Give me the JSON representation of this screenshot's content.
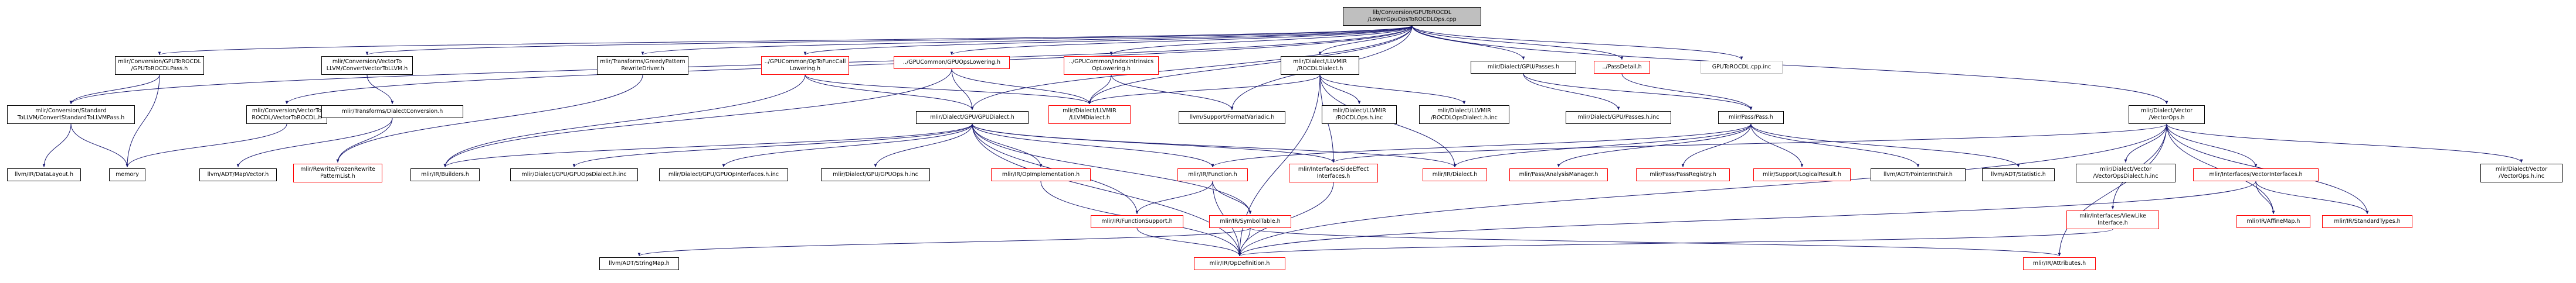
{
  "colors": {
    "edge": "#191970",
    "root_fill": "#bfbfbf",
    "missing_border": "#ff0000",
    "external_border": "#bfbfbf"
  },
  "nodes": [
    {
      "id": "root",
      "lines": [
        "lib/Conversion/GPUToROCDL",
        "/LowerGpuOpsToROCDLOps.cpp"
      ],
      "kind": "root"
    },
    {
      "id": "gpu_rocdl_h",
      "lines": [
        "mlir/Conversion/GPUToROCDL",
        "/GPUToROCDLPass.h"
      ],
      "kind": "normal"
    },
    {
      "id": "std_to_llvm_pass",
      "lines": [
        "mlir/Conversion/Standard",
        "ToLLVM/ConvertStandardToLLVMPass.h"
      ],
      "kind": "normal"
    },
    {
      "id": "vec_to_llvm",
      "lines": [
        "mlir/Conversion/VectorTo",
        "LLVM/ConvertVectorToLLVM.h"
      ],
      "kind": "normal"
    },
    {
      "id": "vec_to_rocdl",
      "lines": [
        "mlir/Conversion/VectorTo",
        "ROCDL/VectorToROCDL.h"
      ],
      "kind": "normal"
    },
    {
      "id": "greedy",
      "lines": [
        "mlir/Transforms/GreedyPattern",
        "RewriteDriver.h"
      ],
      "kind": "normal"
    },
    {
      "id": "dialect_conv",
      "lines": [
        "mlir/Transforms/DialectConversion.h"
      ],
      "kind": "normal"
    },
    {
      "id": "func_call",
      "lines": [
        "../GPUCommon/OpToFuncCall",
        "Lowering.h"
      ],
      "kind": "red"
    },
    {
      "id": "gpu_ops_lowering",
      "lines": [
        "../GPUCommon/GPUOpsLowering.h"
      ],
      "kind": "red"
    },
    {
      "id": "index_intr",
      "lines": [
        "../GPUCommon/IndexIntrinsics",
        "OpLowering.h"
      ],
      "kind": "red"
    },
    {
      "id": "rocdl_dialect",
      "lines": [
        "mlir/Dialect/LLVMIR",
        "/ROCDLDialect.h"
      ],
      "kind": "normal"
    },
    {
      "id": "gpu_passes",
      "lines": [
        "mlir/Dialect/GPU/Passes.h"
      ],
      "kind": "normal"
    },
    {
      "id": "pass_detail",
      "lines": [
        "../PassDetail.h"
      ],
      "kind": "red"
    },
    {
      "id": "gpu_rocdl_inc",
      "lines": [
        "GPUToROCDL.cpp.inc"
      ],
      "kind": "gray"
    },
    {
      "id": "gpu_dialect",
      "lines": [
        "mlir/Dialect/GPU/GPUDialect.h"
      ],
      "kind": "normal"
    },
    {
      "id": "llvm_dialect",
      "lines": [
        "mlir/Dialect/LLVMIR",
        "/LLVMDialect.h"
      ],
      "kind": "red"
    },
    {
      "id": "format_variadic",
      "lines": [
        "llvm/Support/FormatVariadic.h"
      ],
      "kind": "normal"
    },
    {
      "id": "rocdl_ops_inc",
      "lines": [
        "mlir/Dialect/LLVMIR",
        "/ROCDLOps.h.inc"
      ],
      "kind": "normal"
    },
    {
      "id": "rocdl_ops_dialect_inc",
      "lines": [
        "mlir/Dialect/LLVMIR",
        "/ROCDLOpsDialect.h.inc"
      ],
      "kind": "normal"
    },
    {
      "id": "gpu_passes_inc",
      "lines": [
        "mlir/Dialect/GPU/Passes.h.inc"
      ],
      "kind": "normal"
    },
    {
      "id": "pass_pass",
      "lines": [
        "mlir/Pass/Pass.h"
      ],
      "kind": "normal"
    },
    {
      "id": "vector_ops",
      "lines": [
        "mlir/Dialect/Vector",
        "/VectorOps.h"
      ],
      "kind": "normal"
    },
    {
      "id": "data_layout",
      "lines": [
        "llvm/IR/DataLayout.h"
      ],
      "kind": "normal"
    },
    {
      "id": "memory",
      "lines": [
        "memory"
      ],
      "kind": "normal"
    },
    {
      "id": "map_vector",
      "lines": [
        "llvm/ADT/MapVector.h"
      ],
      "kind": "normal"
    },
    {
      "id": "frozen_pattern",
      "lines": [
        "mlir/Rewrite/FrozenRewrite",
        "PatternList.h"
      ],
      "kind": "red"
    },
    {
      "id": "builders",
      "lines": [
        "mlir/IR/Builders.h"
      ],
      "kind": "normal"
    },
    {
      "id": "gpu_ops_dialect_inc",
      "lines": [
        "mlir/Dialect/GPU/GPUOpsDialect.h.inc"
      ],
      "kind": "normal"
    },
    {
      "id": "gpu_op_interfaces_inc",
      "lines": [
        "mlir/Dialect/GPU/GPUOpInterfaces.h.inc"
      ],
      "kind": "normal"
    },
    {
      "id": "gpu_ops_inc",
      "lines": [
        "mlir/Dialect/GPU/GPUOps.h.inc"
      ],
      "kind": "normal"
    },
    {
      "id": "op_impl",
      "lines": [
        "mlir/IR/OpImplementation.h"
      ],
      "kind": "red"
    },
    {
      "id": "ir_function",
      "lines": [
        "mlir/IR/Function.h"
      ],
      "kind": "red"
    },
    {
      "id": "side_effect",
      "lines": [
        "mlir/Interfaces/SideEffect",
        "Interfaces.h"
      ],
      "kind": "red"
    },
    {
      "id": "ir_dialect",
      "lines": [
        "mlir/IR/Dialect.h"
      ],
      "kind": "red"
    },
    {
      "id": "analysis_mgr",
      "lines": [
        "mlir/Pass/AnalysisManager.h"
      ],
      "kind": "red"
    },
    {
      "id": "pass_registry",
      "lines": [
        "mlir/Pass/PassRegistry.h"
      ],
      "kind": "red"
    },
    {
      "id": "logical_result",
      "lines": [
        "mlir/Support/LogicalResult.h"
      ],
      "kind": "red"
    },
    {
      "id": "pointer_int_pair",
      "lines": [
        "llvm/ADT/PointerIntPair.h"
      ],
      "kind": "normal"
    },
    {
      "id": "statistic",
      "lines": [
        "llvm/ADT/Statistic.h"
      ],
      "kind": "normal"
    },
    {
      "id": "vector_ops_dialect_inc",
      "lines": [
        "mlir/Dialect/Vector",
        "/VectorOpsDialect.h.inc"
      ],
      "kind": "normal"
    },
    {
      "id": "vector_interfaces",
      "lines": [
        "mlir/Interfaces/VectorInterfaces.h"
      ],
      "kind": "red"
    },
    {
      "id": "vector_ops_inc",
      "lines": [
        "mlir/Dialect/Vector",
        "/VectorOps.h.inc"
      ],
      "kind": "normal"
    },
    {
      "id": "function_support",
      "lines": [
        "mlir/IR/FunctionSupport.h"
      ],
      "kind": "red"
    },
    {
      "id": "symbol_table",
      "lines": [
        "mlir/IR/SymbolTable.h"
      ],
      "kind": "red"
    },
    {
      "id": "view_like",
      "lines": [
        "mlir/Interfaces/ViewLike",
        "Interface.h"
      ],
      "kind": "red"
    },
    {
      "id": "affine_map",
      "lines": [
        "mlir/IR/AffineMap.h"
      ],
      "kind": "red"
    },
    {
      "id": "standard_types",
      "lines": [
        "mlir/IR/StandardTypes.h"
      ],
      "kind": "red"
    },
    {
      "id": "string_map",
      "lines": [
        "llvm/ADT/StringMap.h"
      ],
      "kind": "normal"
    },
    {
      "id": "op_definition",
      "lines": [
        "mlir/IR/OpDefinition.h"
      ],
      "kind": "red"
    },
    {
      "id": "attributes",
      "lines": [
        "mlir/IR/Attributes.h"
      ],
      "kind": "red"
    }
  ],
  "edges": [
    [
      "root",
      "gpu_rocdl_h"
    ],
    [
      "root",
      "std_to_llvm_pass"
    ],
    [
      "root",
      "vec_to_llvm"
    ],
    [
      "root",
      "vec_to_rocdl"
    ],
    [
      "root",
      "greedy"
    ],
    [
      "root",
      "func_call"
    ],
    [
      "root",
      "gpu_ops_lowering"
    ],
    [
      "root",
      "index_intr"
    ],
    [
      "root",
      "rocdl_dialect"
    ],
    [
      "root",
      "gpu_passes"
    ],
    [
      "root",
      "pass_detail"
    ],
    [
      "root",
      "gpu_rocdl_inc"
    ],
    [
      "root",
      "gpu_dialect"
    ],
    [
      "root",
      "llvm_dialect"
    ],
    [
      "root",
      "format_variadic"
    ],
    [
      "root",
      "vector_ops"
    ],
    [
      "gpu_rocdl_h",
      "std_to_llvm_pass"
    ],
    [
      "gpu_rocdl_h",
      "memory"
    ],
    [
      "std_to_llvm_pass",
      "data_layout"
    ],
    [
      "std_to_llvm_pass",
      "memory"
    ],
    [
      "vec_to_llvm",
      "dialect_conv"
    ],
    [
      "vec_to_rocdl",
      "memory"
    ],
    [
      "greedy",
      "frozen_pattern"
    ],
    [
      "dialect_conv",
      "map_vector"
    ],
    [
      "dialect_conv",
      "frozen_pattern"
    ],
    [
      "func_call",
      "gpu_dialect"
    ],
    [
      "func_call",
      "llvm_dialect"
    ],
    [
      "func_call",
      "builders"
    ],
    [
      "gpu_ops_lowering",
      "gpu_dialect"
    ],
    [
      "gpu_ops_lowering",
      "llvm_dialect"
    ],
    [
      "gpu_ops_lowering",
      "builders"
    ],
    [
      "index_intr",
      "llvm_dialect"
    ],
    [
      "index_intr",
      "format_variadic"
    ],
    [
      "rocdl_dialect",
      "llvm_dialect"
    ],
    [
      "rocdl_dialect",
      "rocdl_ops_inc"
    ],
    [
      "rocdl_dialect",
      "rocdl_ops_dialect_inc"
    ],
    [
      "rocdl_dialect",
      "side_effect"
    ],
    [
      "rocdl_dialect",
      "ir_dialect"
    ],
    [
      "rocdl_dialect",
      "op_definition"
    ],
    [
      "gpu_passes",
      "gpu_passes_inc"
    ],
    [
      "gpu_passes",
      "pass_pass"
    ],
    [
      "pass_detail",
      "pass_pass"
    ],
    [
      "gpu_dialect",
      "builders"
    ],
    [
      "gpu_dialect",
      "gpu_ops_dialect_inc"
    ],
    [
      "gpu_dialect",
      "gpu_op_interfaces_inc"
    ],
    [
      "gpu_dialect",
      "gpu_ops_inc"
    ],
    [
      "gpu_dialect",
      "op_impl"
    ],
    [
      "gpu_dialect",
      "ir_function"
    ],
    [
      "gpu_dialect",
      "side_effect"
    ],
    [
      "gpu_dialect",
      "ir_dialect"
    ],
    [
      "gpu_dialect",
      "symbol_table"
    ],
    [
      "gpu_dialect",
      "function_support"
    ],
    [
      "gpu_dialect",
      "op_definition"
    ],
    [
      "pass_pass",
      "ir_dialect"
    ],
    [
      "pass_pass",
      "analysis_mgr"
    ],
    [
      "pass_pass",
      "pass_registry"
    ],
    [
      "pass_pass",
      "logical_result"
    ],
    [
      "pass_pass",
      "pointer_int_pair"
    ],
    [
      "pass_pass",
      "statistic"
    ],
    [
      "pass_pass",
      "ir_function"
    ],
    [
      "vector_ops",
      "vector_ops_dialect_inc"
    ],
    [
      "vector_ops",
      "vector_interfaces"
    ],
    [
      "vector_ops",
      "vector_ops_inc"
    ],
    [
      "vector_ops",
      "side_effect"
    ],
    [
      "vector_ops",
      "view_like"
    ],
    [
      "vector_ops",
      "affine_map"
    ],
    [
      "vector_ops",
      "standard_types"
    ],
    [
      "vector_ops",
      "op_definition"
    ],
    [
      "vector_ops",
      "attributes"
    ],
    [
      "vector_interfaces",
      "affine_map"
    ],
    [
      "vector_interfaces",
      "standard_types"
    ],
    [
      "vector_interfaces",
      "op_definition"
    ],
    [
      "op_impl",
      "op_definition"
    ],
    [
      "ir_function",
      "function_support"
    ],
    [
      "ir_function",
      "symbol_table"
    ],
    [
      "ir_function",
      "op_definition"
    ],
    [
      "side_effect",
      "op_definition"
    ],
    [
      "function_support",
      "op_definition"
    ],
    [
      "symbol_table",
      "op_definition"
    ],
    [
      "symbol_table",
      "string_map"
    ],
    [
      "symbol_table",
      "attributes"
    ],
    [
      "view_like",
      "op_definition"
    ]
  ]
}
